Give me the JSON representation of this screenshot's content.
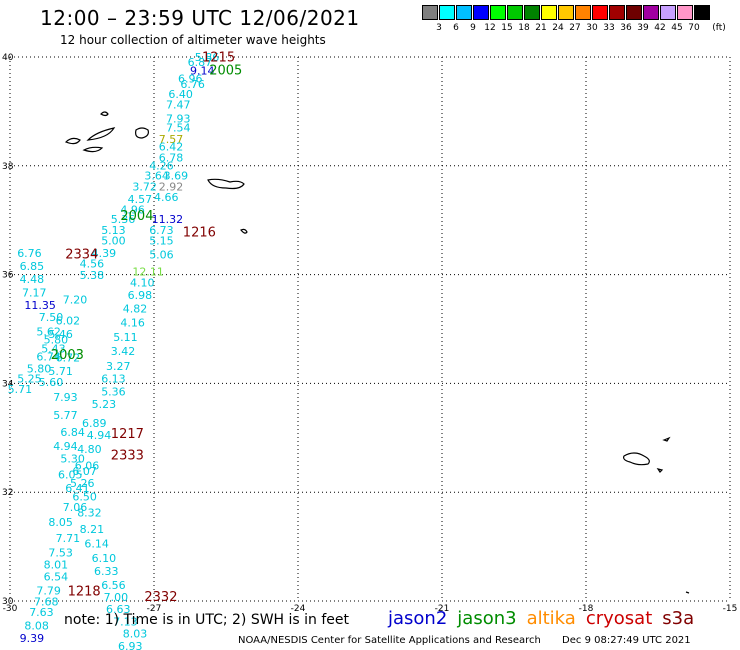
{
  "header": {
    "title": "12:00 – 23:59 UTC 12/06/2021",
    "subtitle": "12 hour collection of altimeter wave heights"
  },
  "colorbar": {
    "labels": [
      "3",
      "6",
      "9",
      "12",
      "15",
      "18",
      "21",
      "24",
      "27",
      "30",
      "33",
      "36",
      "39",
      "42",
      "45",
      "70"
    ],
    "unit": "(ft)",
    "colors": [
      "#7f7f7f",
      "#00ffff",
      "#00bfff",
      "#0000ff",
      "#00ff00",
      "#00c800",
      "#008200",
      "#ffff00",
      "#ffc800",
      "#ff8200",
      "#ff0000",
      "#a00000",
      "#6e0000",
      "#a000a0",
      "#c8a0ff",
      "#ff96c8",
      "#000000"
    ]
  },
  "footer": {
    "note": "note: 1) Time is in UTC; 2) SWH is in feet",
    "satellites": [
      {
        "name": "jason2",
        "color": "#0000cc"
      },
      {
        "name": "jason3",
        "color": "#008c00"
      },
      {
        "name": "altika",
        "color": "#ff8c00"
      },
      {
        "name": "cryosat",
        "color": "#cc0000"
      },
      {
        "name": "s3a",
        "color": "#800000"
      }
    ],
    "credit": "NOAA/NESDIS Center for Satellite Applications and Research",
    "timestamp": "Dec  9 08:27:49 UTC 2021"
  },
  "chart_data": {
    "type": "scatter",
    "title": "12:00 – 23:59 UTC 12/06/2021",
    "subtitle": "12 hour collection of altimeter wave heights",
    "xlim": [
      -30,
      -15
    ],
    "ylim": [
      30,
      40
    ],
    "xticks": [
      "-30",
      "-27",
      "-24",
      "-21",
      "-18",
      "-15"
    ],
    "yticks": [
      "30",
      "32",
      "34",
      "36",
      "38",
      "40"
    ],
    "grid": true,
    "unit": "ft",
    "pass_labels": [
      {
        "text": "1215",
        "x": -26.0,
        "y": 39.92,
        "color": "#800000"
      },
      {
        "text": "2005",
        "x": -25.85,
        "y": 39.68,
        "color": "#008c00"
      },
      {
        "text": "2004",
        "x": -27.7,
        "y": 37.0,
        "color": "#008c00"
      },
      {
        "text": "1216",
        "x": -26.4,
        "y": 36.7,
        "color": "#800000"
      },
      {
        "text": "2334",
        "x": -28.85,
        "y": 36.3,
        "color": "#800000"
      },
      {
        "text": "2003",
        "x": -29.15,
        "y": 34.45,
        "color": "#008c00"
      },
      {
        "text": "1217",
        "x": -27.9,
        "y": 33.0,
        "color": "#800000"
      },
      {
        "text": "2333",
        "x": -27.9,
        "y": 32.6,
        "color": "#800000"
      },
      {
        "text": "1218",
        "x": -28.8,
        "y": 30.1,
        "color": "#800000"
      },
      {
        "text": "2332",
        "x": -27.2,
        "y": 30.0,
        "color": "#800000"
      }
    ],
    "points": [
      {
        "x": -26.15,
        "y": 39.93,
        "v": "5.86"
      },
      {
        "x": -26.3,
        "y": 39.83,
        "v": "6.87"
      },
      {
        "x": -26.25,
        "y": 39.68,
        "v": "9.14",
        "color": "#0000cc"
      },
      {
        "x": -26.5,
        "y": 39.53,
        "v": "6.96"
      },
      {
        "x": -26.45,
        "y": 39.43,
        "v": "6.76"
      },
      {
        "x": -26.7,
        "y": 39.25,
        "v": "6.40"
      },
      {
        "x": -26.75,
        "y": 39.05,
        "v": "7.47"
      },
      {
        "x": -26.75,
        "y": 38.8,
        "v": "7.93"
      },
      {
        "x": -26.75,
        "y": 38.63,
        "v": "7.54"
      },
      {
        "x": -26.9,
        "y": 38.42,
        "v": "7.57",
        "color": "#aaaa00"
      },
      {
        "x": -26.9,
        "y": 38.28,
        "v": "6.42"
      },
      {
        "x": -26.9,
        "y": 38.08,
        "v": "6.78"
      },
      {
        "x": -27.1,
        "y": 37.93,
        "v": "4.26"
      },
      {
        "x": -27.2,
        "y": 37.75,
        "v": "3.64"
      },
      {
        "x": -26.8,
        "y": 37.75,
        "v": "3.69"
      },
      {
        "x": -27.45,
        "y": 37.55,
        "v": "3.72"
      },
      {
        "x": -26.9,
        "y": 37.55,
        "v": "2.92",
        "color": "#888888"
      },
      {
        "x": -27.55,
        "y": 37.32,
        "v": "4.57"
      },
      {
        "x": -27.0,
        "y": 37.35,
        "v": "4.66"
      },
      {
        "x": -27.7,
        "y": 37.12,
        "v": "4.96"
      },
      {
        "x": -27.05,
        "y": 36.95,
        "v": "11.32",
        "color": "#0000cc"
      },
      {
        "x": -27.9,
        "y": 36.95,
        "v": "5.36"
      },
      {
        "x": -28.1,
        "y": 36.75,
        "v": "5.13"
      },
      {
        "x": -27.1,
        "y": 36.75,
        "v": "6.73"
      },
      {
        "x": -28.1,
        "y": 36.55,
        "v": "5.00"
      },
      {
        "x": -27.1,
        "y": 36.55,
        "v": "5.15"
      },
      {
        "x": -28.3,
        "y": 36.32,
        "v": "4.39"
      },
      {
        "x": -27.1,
        "y": 36.3,
        "v": "5.06"
      },
      {
        "x": -28.55,
        "y": 36.13,
        "v": "4.56"
      },
      {
        "x": -27.45,
        "y": 35.98,
        "v": "12.11",
        "color": "#77dd44"
      },
      {
        "x": -28.55,
        "y": 35.92,
        "v": "5.38"
      },
      {
        "x": -27.5,
        "y": 35.78,
        "v": "4.10"
      },
      {
        "x": -29.85,
        "y": 36.32,
        "v": "6.76"
      },
      {
        "x": -29.8,
        "y": 36.08,
        "v": "6.85"
      },
      {
        "x": -29.8,
        "y": 35.85,
        "v": "4.48"
      },
      {
        "x": -29.75,
        "y": 35.6,
        "v": "7.17"
      },
      {
        "x": -28.9,
        "y": 35.47,
        "v": "7.20"
      },
      {
        "x": -27.55,
        "y": 35.55,
        "v": "6.98"
      },
      {
        "x": -29.7,
        "y": 35.37,
        "v": "11.35",
        "color": "#0000cc"
      },
      {
        "x": -27.65,
        "y": 35.3,
        "v": "4.82"
      },
      {
        "x": -29.4,
        "y": 35.15,
        "v": "7.50"
      },
      {
        "x": -29.05,
        "y": 35.08,
        "v": "6.02"
      },
      {
        "x": -27.7,
        "y": 35.05,
        "v": "4.16"
      },
      {
        "x": -29.45,
        "y": 34.88,
        "v": "5.62"
      },
      {
        "x": -29.2,
        "y": 34.83,
        "v": "5.46"
      },
      {
        "x": -29.3,
        "y": 34.73,
        "v": "5.80"
      },
      {
        "x": -27.85,
        "y": 34.78,
        "v": "5.11"
      },
      {
        "x": -29.35,
        "y": 34.57,
        "v": "5.43"
      },
      {
        "x": -29.45,
        "y": 34.42,
        "v": "6.74"
      },
      {
        "x": -29.05,
        "y": 34.4,
        "v": "6.72"
      },
      {
        "x": -27.9,
        "y": 34.52,
        "v": "3.42"
      },
      {
        "x": -29.65,
        "y": 34.2,
        "v": "5.80"
      },
      {
        "x": -29.2,
        "y": 34.15,
        "v": "5.71"
      },
      {
        "x": -28.0,
        "y": 34.25,
        "v": "3.27"
      },
      {
        "x": -29.85,
        "y": 34.02,
        "v": "5.25"
      },
      {
        "x": -28.1,
        "y": 34.02,
        "v": "6.13"
      },
      {
        "x": -29.4,
        "y": 33.95,
        "v": "5.60"
      },
      {
        "x": -30.05,
        "y": 33.82,
        "v": "5.71"
      },
      {
        "x": -28.1,
        "y": 33.78,
        "v": "5.36"
      },
      {
        "x": -29.1,
        "y": 33.68,
        "v": "7.93"
      },
      {
        "x": -28.3,
        "y": 33.55,
        "v": "5.23"
      },
      {
        "x": -29.1,
        "y": 33.35,
        "v": "5.77"
      },
      {
        "x": -28.5,
        "y": 33.2,
        "v": "6.89"
      },
      {
        "x": -28.95,
        "y": 33.03,
        "v": "6.84"
      },
      {
        "x": -28.4,
        "y": 32.98,
        "v": "4.94"
      },
      {
        "x": -29.1,
        "y": 32.78,
        "v": "4.94"
      },
      {
        "x": -28.6,
        "y": 32.72,
        "v": "4.80"
      },
      {
        "x": -28.95,
        "y": 32.55,
        "v": "5.30"
      },
      {
        "x": -28.65,
        "y": 32.42,
        "v": "6.06"
      },
      {
        "x": -28.7,
        "y": 32.32,
        "v": "6.07"
      },
      {
        "x": -29.0,
        "y": 32.25,
        "v": "6.05"
      },
      {
        "x": -28.75,
        "y": 32.1,
        "v": "5.26"
      },
      {
        "x": -28.85,
        "y": 32.0,
        "v": "6.41"
      },
      {
        "x": -28.7,
        "y": 31.85,
        "v": "6.50"
      },
      {
        "x": -28.9,
        "y": 31.65,
        "v": "7.06"
      },
      {
        "x": -28.6,
        "y": 31.55,
        "v": "8.32"
      },
      {
        "x": -29.2,
        "y": 31.38,
        "v": "8.05"
      },
      {
        "x": -28.55,
        "y": 31.25,
        "v": "8.21"
      },
      {
        "x": -29.05,
        "y": 31.08,
        "v": "7.71"
      },
      {
        "x": -28.45,
        "y": 30.98,
        "v": "6.14"
      },
      {
        "x": -29.2,
        "y": 30.82,
        "v": "7.53"
      },
      {
        "x": -28.3,
        "y": 30.72,
        "v": "6.10"
      },
      {
        "x": -29.3,
        "y": 30.6,
        "v": "8.01"
      },
      {
        "x": -28.25,
        "y": 30.48,
        "v": "6.33"
      },
      {
        "x": -29.3,
        "y": 30.38,
        "v": "6.54"
      },
      {
        "x": -28.1,
        "y": 30.22,
        "v": "6.56"
      },
      {
        "x": -29.45,
        "y": 30.12,
        "v": "7.79"
      },
      {
        "x": -28.05,
        "y": 30.0,
        "v": "7.00"
      },
      {
        "x": -29.5,
        "y": 29.92,
        "v": "7.68"
      },
      {
        "x": -28.0,
        "y": 29.78,
        "v": "6.63"
      },
      {
        "x": -29.6,
        "y": 29.72,
        "v": "7.63"
      },
      {
        "x": -27.85,
        "y": 29.55,
        "v": "7.13"
      },
      {
        "x": -29.7,
        "y": 29.48,
        "v": "8.08"
      },
      {
        "x": -27.65,
        "y": 29.33,
        "v": "8.03"
      },
      {
        "x": -29.8,
        "y": 29.25,
        "v": "9.39",
        "color": "#0000cc"
      },
      {
        "x": -27.75,
        "y": 29.1,
        "v": "6.93"
      }
    ]
  }
}
